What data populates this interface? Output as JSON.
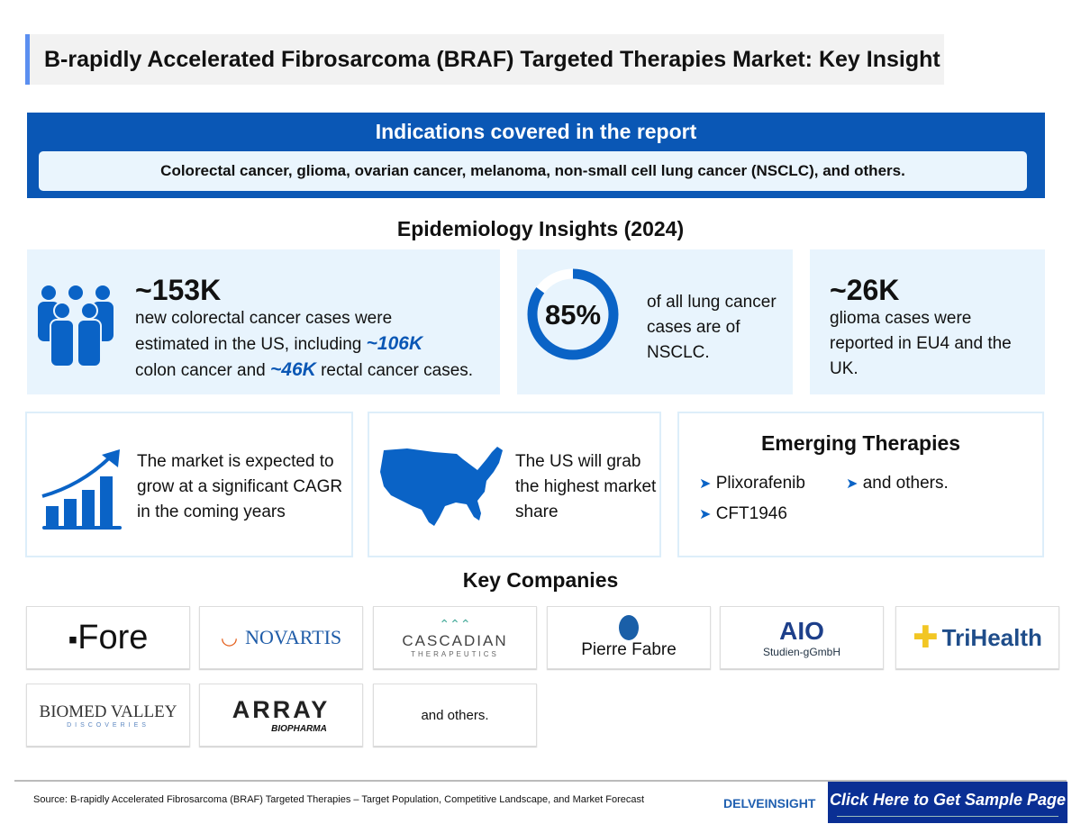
{
  "title": "B-rapidly Accelerated Fibrosarcoma (BRAF) Targeted Therapies Market: Key Insight",
  "indications": {
    "heading": "Indications covered in the report",
    "text": "Colorectal cancer, glioma, ovarian cancer, melanoma, non-small cell lung cancer (NSCLC), and others."
  },
  "epidemiology": {
    "heading": "Epidemiology Insights (2024)",
    "colorectal": {
      "value": "~153K",
      "line1": "new colorectal cancer cases were",
      "line2a": "estimated in the US, including ",
      "colon": "~106K",
      "line3a": "colon cancer and ",
      "rectal": "~46K",
      "line3b": " rectal cancer cases."
    },
    "nsclc": {
      "percent_label": "85%",
      "percent": 85,
      "text": "of all lung cancer cases are of NSCLC."
    },
    "glioma": {
      "value": "~26K",
      "text": "glioma cases were reported in EU4 and the UK."
    }
  },
  "market": {
    "growth": "The market is expected to grow at a significant CAGR in the coming years",
    "us": "The US will grab the highest market share"
  },
  "emerging": {
    "heading": "Emerging Therapies",
    "items": [
      "Plixorafenib",
      "CFT1946",
      "and others."
    ]
  },
  "companies": {
    "heading": "Key Companies",
    "logos": [
      "Fore",
      "NOVARTIS",
      "CASCADIAN",
      "THERAPEUTICS",
      "Pierre Fabre",
      "AIO",
      "Studien-gGmbH",
      "TriHealth",
      "BIOMED VALLEY",
      "DISCOVERIES",
      "ARRAY",
      "BIOPHARMA"
    ],
    "others": "and others."
  },
  "footer": {
    "source": "Source: B-rapidly Accelerated Fibrosarcoma (BRAF) Targeted Therapies – Target Population, Competitive Landscape, and Market Forecast",
    "brand": "DELVEINSIGHT",
    "cta": "Click Here to Get Sample Page"
  },
  "colors": {
    "primary": "#0a57b5",
    "cta": "#0a2f94",
    "card": "#e8f4fd"
  }
}
